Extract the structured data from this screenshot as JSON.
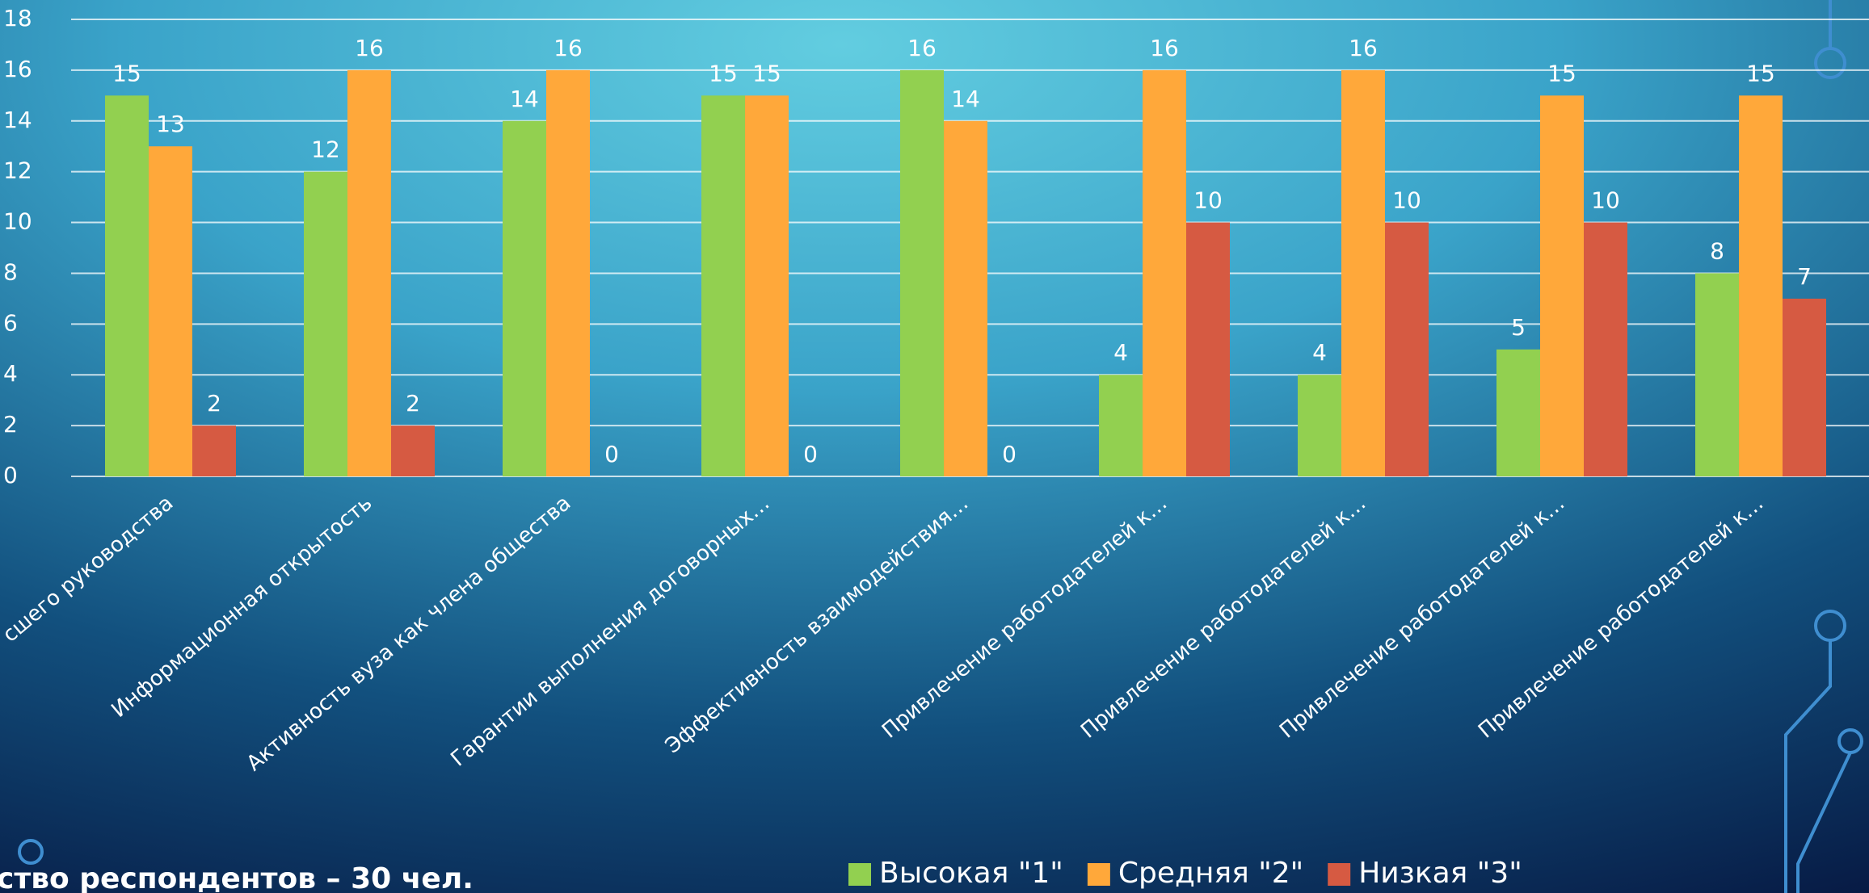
{
  "chart_data": {
    "type": "bar",
    "categories": [
      "сшего руководства",
      "Информационная открытость",
      "Активность вуза как члена общества",
      "Гарантии выполнения договорных…",
      "Эффективность взаимодействия…",
      "Привлечение работодателей  к…",
      "Привлечение работодателей  к…",
      "Привлечение работодателей к…",
      "Привлечение работодателей к…"
    ],
    "series": [
      {
        "name": "Высокая \"1\"",
        "color": "#92d050",
        "values": [
          15,
          12,
          14,
          15,
          16,
          4,
          4,
          5,
          8
        ]
      },
      {
        "name": "Средняя \"2\"",
        "color": "#ffa83a",
        "values": [
          13,
          16,
          16,
          15,
          14,
          16,
          16,
          15,
          15
        ]
      },
      {
        "name": "Низкая \"3\"",
        "color": "#d65a42",
        "values": [
          2,
          2,
          0,
          0,
          0,
          10,
          10,
          10,
          7
        ]
      }
    ],
    "ylim": [
      0,
      18
    ],
    "yticks": [
      0,
      2,
      4,
      6,
      8,
      10,
      12,
      14,
      16,
      18
    ],
    "grid": true,
    "legend": "bottom",
    "note": "ство респондентов – 30 чел."
  }
}
